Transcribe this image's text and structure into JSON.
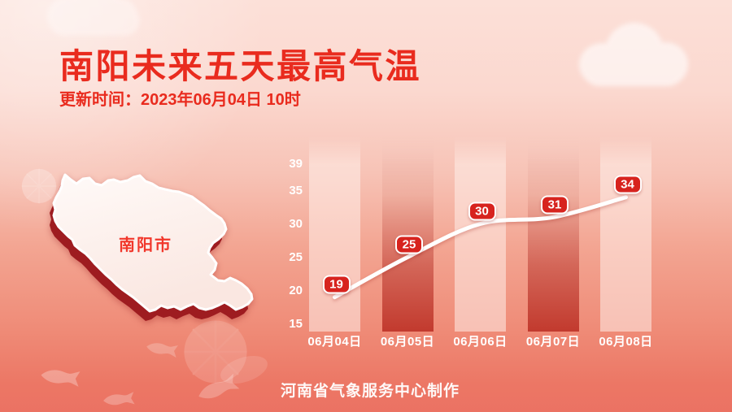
{
  "header": {
    "title": "南阳未来五天最高气温",
    "update_time": "更新时间：2023年06月04日 10时"
  },
  "map": {
    "label": "南阳市"
  },
  "footer": {
    "credit": "河南省气象服务中心制作"
  },
  "chart_data": {
    "type": "line",
    "title": "南阳未来五天最高气温",
    "categories": [
      "06月04日",
      "06月05日",
      "06月06日",
      "06月07日",
      "06月08日"
    ],
    "values": [
      19,
      25,
      30,
      31,
      34
    ],
    "yticks": [
      39,
      35,
      30,
      25,
      20,
      15
    ],
    "ylim": [
      15,
      39
    ],
    "xlabel": "",
    "ylabel": "",
    "grid": false,
    "legend": false,
    "bar_styles": [
      "light",
      "dark",
      "light",
      "dark",
      "light"
    ],
    "point_label_style": "red-rounded-badge"
  },
  "colors": {
    "accent-red": "#e92b1e",
    "badge-red": "#d7231e",
    "bar-dark-red": "#c23a2e",
    "map-shadow-red": "#9e1c20",
    "line-white": "#ffffff"
  }
}
